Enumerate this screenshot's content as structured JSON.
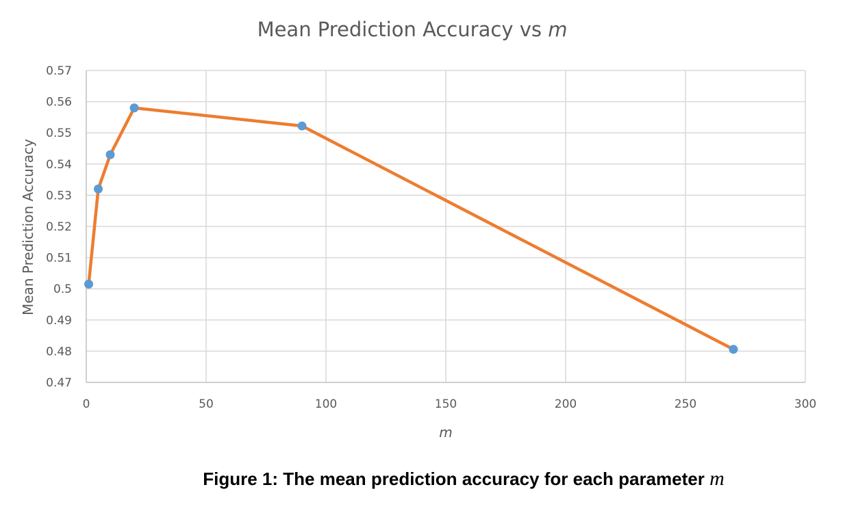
{
  "chart_data": {
    "type": "line",
    "title": "Mean Prediction Accuracy vs ",
    "title_var": "m",
    "xlabel": "m",
    "ylabel": "Mean Prediction  Accuracy",
    "xlim": [
      0,
      300
    ],
    "ylim": [
      0.47,
      0.57
    ],
    "x_ticks": [
      "0",
      "50",
      "100",
      "150",
      "200",
      "250",
      "300"
    ],
    "y_ticks": [
      "0.47",
      "0.48",
      "0.49",
      "0.5",
      "0.51",
      "0.52",
      "0.53",
      "0.54",
      "0.55",
      "0.56",
      "0.57"
    ],
    "grid": true,
    "legend": "none",
    "series": [
      {
        "x": [
          1,
          5,
          10,
          20,
          90,
          270
        ],
        "y": [
          0.5015,
          0.532,
          0.543,
          0.558,
          0.5522,
          0.4806
        ],
        "line_color": "#ED7D31",
        "marker_color": "#5B9BD5"
      }
    ]
  },
  "caption": {
    "text": "Figure 1: The mean prediction accuracy for each parameter ",
    "var": "m"
  }
}
